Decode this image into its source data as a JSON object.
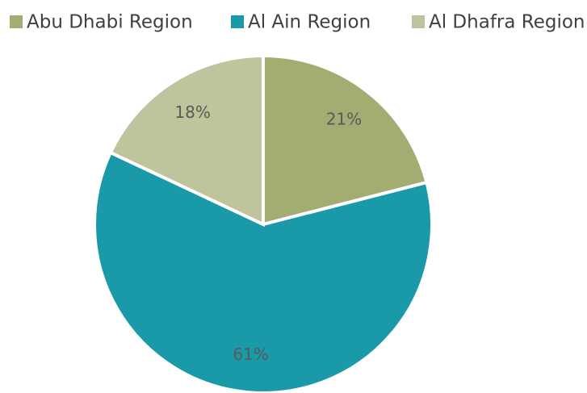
{
  "chart_data": {
    "type": "pie",
    "categories": [
      "Abu Dhabi Region",
      "Al Ain Region",
      "Al Dhafra Region"
    ],
    "values": [
      21,
      61,
      18
    ],
    "value_labels": [
      "21%",
      "61%",
      "18%"
    ],
    "colors": [
      "#a3ad72",
      "#1a9aa8",
      "#c0c49c"
    ]
  }
}
